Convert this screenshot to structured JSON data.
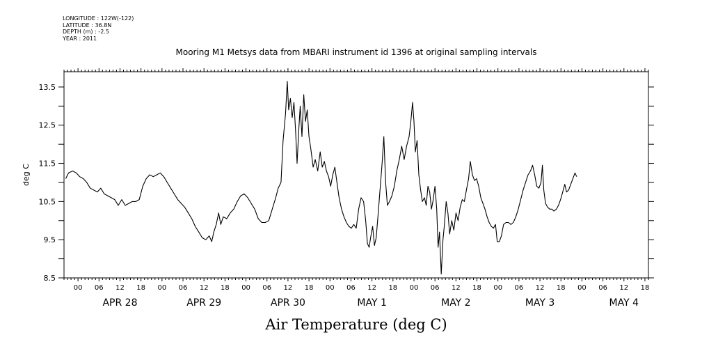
{
  "header": {
    "lines": [
      "LONGITUDE : 122W(-122)",
      "LATITUDE : 36.8N",
      "DEPTH (m) : -2.5",
      "YEAR : 2011"
    ]
  },
  "chart_data": {
    "type": "line",
    "title": "Mooring M1 Metsys data from MBARI instrument id 1396 at original sampling intervals",
    "xlabel": "Air Temperature (deg C)",
    "ylabel": "deg C",
    "ylim": [
      8.5,
      13.9
    ],
    "yticks": [
      8.5,
      9.5,
      10.5,
      11.5,
      12.5,
      13.5
    ],
    "xlim": [
      -4,
      163
    ],
    "x_unit": "hours from 2011-04-28 00:00",
    "hour_ticks": [
      {
        "x": 0,
        "label": "00"
      },
      {
        "x": 6,
        "label": "06"
      },
      {
        "x": 12,
        "label": "12"
      },
      {
        "x": 18,
        "label": "18"
      },
      {
        "x": 24,
        "label": "00"
      },
      {
        "x": 30,
        "label": "06"
      },
      {
        "x": 36,
        "label": "12"
      },
      {
        "x": 42,
        "label": "18"
      },
      {
        "x": 48,
        "label": "00"
      },
      {
        "x": 54,
        "label": "06"
      },
      {
        "x": 60,
        "label": "12"
      },
      {
        "x": 66,
        "label": "18"
      },
      {
        "x": 72,
        "label": "00"
      },
      {
        "x": 78,
        "label": "06"
      },
      {
        "x": 84,
        "label": "12"
      },
      {
        "x": 90,
        "label": "18"
      },
      {
        "x": 96,
        "label": "00"
      },
      {
        "x": 102,
        "label": "06"
      },
      {
        "x": 108,
        "label": "12"
      },
      {
        "x": 114,
        "label": "18"
      },
      {
        "x": 120,
        "label": "00"
      },
      {
        "x": 126,
        "label": "06"
      },
      {
        "x": 132,
        "label": "12"
      },
      {
        "x": 138,
        "label": "18"
      },
      {
        "x": 144,
        "label": "00"
      },
      {
        "x": 150,
        "label": "06"
      },
      {
        "x": 156,
        "label": "12"
      },
      {
        "x": 162,
        "label": "18"
      }
    ],
    "day_labels": [
      {
        "x": 12,
        "label": "APR 28"
      },
      {
        "x": 36,
        "label": "APR 29"
      },
      {
        "x": 60,
        "label": "APR 30"
      },
      {
        "x": 84,
        "label": "MAY  1"
      },
      {
        "x": 108,
        "label": "MAY  2"
      },
      {
        "x": 132,
        "label": "MAY  3"
      },
      {
        "x": 156,
        "label": "MAY  4"
      }
    ],
    "series": [
      {
        "color": "#000000",
        "points": [
          [
            -3.5,
            11.1
          ],
          [
            -2.7,
            11.25
          ],
          [
            -1.5,
            11.3
          ],
          [
            -0.5,
            11.25
          ],
          [
            0.5,
            11.15
          ],
          [
            1.5,
            11.1
          ],
          [
            2.5,
            11.0
          ],
          [
            3.5,
            10.85
          ],
          [
            4.5,
            10.8
          ],
          [
            5.5,
            10.75
          ],
          [
            6.5,
            10.85
          ],
          [
            7.5,
            10.7
          ],
          [
            8.5,
            10.65
          ],
          [
            9.5,
            10.6
          ],
          [
            10.5,
            10.55
          ],
          [
            11.5,
            10.4
          ],
          [
            12.5,
            10.55
          ],
          [
            13.5,
            10.4
          ],
          [
            14.5,
            10.45
          ],
          [
            15.5,
            10.5
          ],
          [
            16.5,
            10.5
          ],
          [
            17.5,
            10.55
          ],
          [
            18.5,
            10.9
          ],
          [
            19.5,
            11.1
          ],
          [
            20.5,
            11.2
          ],
          [
            21.5,
            11.15
          ],
          [
            22.5,
            11.2
          ],
          [
            23.5,
            11.25
          ],
          [
            24.5,
            11.15
          ],
          [
            25.5,
            11.0
          ],
          [
            26.5,
            10.85
          ],
          [
            27.5,
            10.7
          ],
          [
            28.5,
            10.55
          ],
          [
            29.5,
            10.45
          ],
          [
            30.5,
            10.35
          ],
          [
            31.5,
            10.2
          ],
          [
            32.5,
            10.05
          ],
          [
            33.5,
            9.85
          ],
          [
            34.5,
            9.7
          ],
          [
            35.5,
            9.55
          ],
          [
            36.5,
            9.5
          ],
          [
            37.5,
            9.6
          ],
          [
            38.2,
            9.45
          ],
          [
            38.8,
            9.7
          ],
          [
            39.5,
            9.9
          ],
          [
            40.2,
            10.2
          ],
          [
            40.8,
            9.9
          ],
          [
            41.5,
            10.1
          ],
          [
            42.5,
            10.05
          ],
          [
            43.5,
            10.2
          ],
          [
            44.5,
            10.3
          ],
          [
            45.5,
            10.5
          ],
          [
            46.5,
            10.65
          ],
          [
            47.5,
            10.7
          ],
          [
            48.5,
            10.6
          ],
          [
            49.5,
            10.45
          ],
          [
            50.5,
            10.3
          ],
          [
            51.5,
            10.05
          ],
          [
            52.5,
            9.95
          ],
          [
            53.5,
            9.95
          ],
          [
            54.5,
            10.0
          ],
          [
            55.5,
            10.3
          ],
          [
            56.5,
            10.6
          ],
          [
            57.2,
            10.85
          ],
          [
            58.0,
            11.0
          ],
          [
            58.6,
            12.1
          ],
          [
            59.3,
            12.8
          ],
          [
            59.8,
            13.65
          ],
          [
            60.2,
            12.9
          ],
          [
            60.7,
            13.2
          ],
          [
            61.2,
            12.7
          ],
          [
            61.7,
            13.1
          ],
          [
            62.2,
            12.3
          ],
          [
            62.6,
            11.5
          ],
          [
            63.1,
            12.4
          ],
          [
            63.5,
            13.0
          ],
          [
            64.0,
            12.2
          ],
          [
            64.5,
            13.3
          ],
          [
            65.0,
            12.6
          ],
          [
            65.5,
            12.9
          ],
          [
            66.0,
            12.2
          ],
          [
            66.5,
            11.9
          ],
          [
            67.2,
            11.4
          ],
          [
            67.8,
            11.6
          ],
          [
            68.5,
            11.3
          ],
          [
            69.2,
            11.8
          ],
          [
            69.8,
            11.4
          ],
          [
            70.4,
            11.55
          ],
          [
            71.0,
            11.3
          ],
          [
            71.6,
            11.15
          ],
          [
            72.2,
            10.9
          ],
          [
            72.8,
            11.2
          ],
          [
            73.4,
            11.4
          ],
          [
            74.0,
            11.0
          ],
          [
            74.6,
            10.6
          ],
          [
            75.3,
            10.3
          ],
          [
            76.0,
            10.1
          ],
          [
            76.7,
            9.95
          ],
          [
            77.4,
            9.85
          ],
          [
            78.1,
            9.8
          ],
          [
            78.8,
            9.9
          ],
          [
            79.5,
            9.8
          ],
          [
            80.2,
            10.3
          ],
          [
            80.9,
            10.6
          ],
          [
            81.6,
            10.5
          ],
          [
            82.2,
            10.0
          ],
          [
            82.7,
            9.4
          ],
          [
            83.2,
            9.3
          ],
          [
            83.7,
            9.6
          ],
          [
            84.2,
            9.85
          ],
          [
            84.7,
            9.35
          ],
          [
            85.2,
            9.55
          ],
          [
            85.7,
            10.1
          ],
          [
            86.3,
            10.8
          ],
          [
            86.9,
            11.5
          ],
          [
            87.4,
            12.2
          ],
          [
            87.9,
            11.0
          ],
          [
            88.4,
            10.4
          ],
          [
            89.0,
            10.5
          ],
          [
            89.7,
            10.65
          ],
          [
            90.4,
            10.9
          ],
          [
            91.1,
            11.3
          ],
          [
            91.8,
            11.6
          ],
          [
            92.5,
            11.95
          ],
          [
            93.2,
            11.6
          ],
          [
            93.9,
            11.95
          ],
          [
            94.6,
            12.2
          ],
          [
            95.1,
            12.6
          ],
          [
            95.6,
            13.1
          ],
          [
            96.0,
            12.6
          ],
          [
            96.4,
            11.8
          ],
          [
            96.9,
            12.1
          ],
          [
            97.4,
            11.2
          ],
          [
            97.9,
            10.8
          ],
          [
            98.4,
            10.5
          ],
          [
            99.0,
            10.6
          ],
          [
            99.5,
            10.4
          ],
          [
            100.0,
            10.9
          ],
          [
            100.5,
            10.75
          ],
          [
            101.0,
            10.3
          ],
          [
            101.5,
            10.55
          ],
          [
            102.0,
            10.9
          ],
          [
            102.5,
            10.3
          ],
          [
            102.9,
            9.3
          ],
          [
            103.3,
            9.7
          ],
          [
            103.8,
            8.6
          ],
          [
            104.3,
            9.5
          ],
          [
            104.7,
            9.9
          ],
          [
            105.2,
            10.5
          ],
          [
            105.7,
            10.2
          ],
          [
            106.2,
            9.65
          ],
          [
            106.8,
            10.0
          ],
          [
            107.4,
            9.75
          ],
          [
            108.0,
            10.2
          ],
          [
            108.6,
            10.0
          ],
          [
            109.2,
            10.35
          ],
          [
            109.8,
            10.55
          ],
          [
            110.4,
            10.5
          ],
          [
            111.0,
            10.8
          ],
          [
            111.6,
            11.1
          ],
          [
            112.1,
            11.55
          ],
          [
            112.7,
            11.2
          ],
          [
            113.3,
            11.05
          ],
          [
            113.9,
            11.1
          ],
          [
            114.5,
            10.9
          ],
          [
            115.1,
            10.6
          ],
          [
            115.7,
            10.45
          ],
          [
            116.3,
            10.3
          ],
          [
            116.9,
            10.1
          ],
          [
            117.5,
            9.95
          ],
          [
            118.1,
            9.85
          ],
          [
            118.7,
            9.8
          ],
          [
            119.3,
            9.9
          ],
          [
            119.8,
            9.45
          ],
          [
            120.4,
            9.45
          ],
          [
            121.0,
            9.6
          ],
          [
            121.6,
            9.9
          ],
          [
            122.3,
            9.95
          ],
          [
            123.0,
            9.95
          ],
          [
            123.7,
            9.9
          ],
          [
            124.4,
            9.95
          ],
          [
            125.1,
            10.1
          ],
          [
            125.8,
            10.3
          ],
          [
            126.5,
            10.55
          ],
          [
            127.2,
            10.8
          ],
          [
            127.9,
            11.0
          ],
          [
            128.6,
            11.2
          ],
          [
            129.3,
            11.3
          ],
          [
            129.9,
            11.45
          ],
          [
            130.5,
            11.2
          ],
          [
            131.1,
            10.9
          ],
          [
            131.7,
            10.85
          ],
          [
            132.3,
            11.0
          ],
          [
            132.7,
            11.45
          ],
          [
            133.1,
            10.8
          ],
          [
            133.6,
            10.45
          ],
          [
            134.2,
            10.35
          ],
          [
            134.8,
            10.3
          ],
          [
            135.4,
            10.3
          ],
          [
            136.0,
            10.25
          ],
          [
            136.7,
            10.3
          ],
          [
            137.3,
            10.4
          ],
          [
            137.9,
            10.55
          ],
          [
            138.5,
            10.75
          ],
          [
            139.1,
            10.95
          ],
          [
            139.6,
            10.75
          ],
          [
            140.2,
            10.8
          ],
          [
            140.8,
            10.95
          ],
          [
            141.4,
            11.1
          ],
          [
            142.0,
            11.25
          ],
          [
            142.5,
            11.15
          ]
        ]
      }
    ]
  }
}
